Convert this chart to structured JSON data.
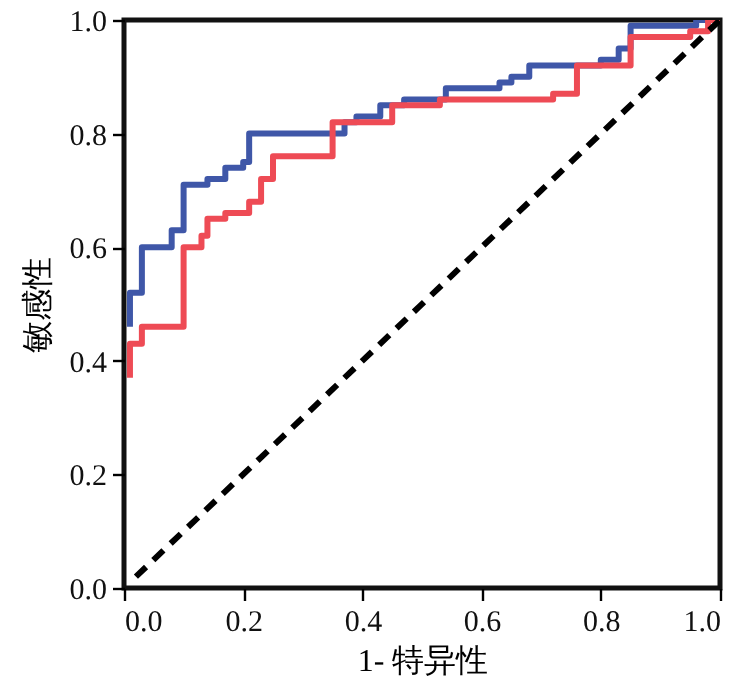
{
  "chart_data": {
    "type": "step",
    "xlabel": "1- 特异性",
    "ylabel": "敏感性",
    "xlim": [
      0,
      1
    ],
    "ylim": [
      0,
      1
    ],
    "xticks": [
      {
        "value": 0,
        "label": "0.0"
      },
      0.2,
      0.4,
      0.6,
      0.8,
      {
        "value": 1,
        "label": "1.0"
      }
    ],
    "yticks": [
      {
        "value": 0,
        "label": "0.0"
      },
      0.2,
      0.4,
      0.6,
      0.8,
      {
        "value": 1,
        "label": "1.0"
      }
    ],
    "series": [
      {
        "color": "#3f57a8",
        "x": [
          0.01,
          0.01,
          0.03,
          0.08,
          0.1,
          0.14,
          0.17,
          0.2,
          0.21,
          0.37,
          0.39,
          0.43,
          0.47,
          0.54,
          0.63,
          0.65,
          0.68,
          0.8,
          0.83,
          0.85,
          0.96,
          1.0
        ],
        "values": [
          0.46,
          0.52,
          0.6,
          0.63,
          0.71,
          0.72,
          0.74,
          0.75,
          0.8,
          0.82,
          0.83,
          0.85,
          0.86,
          0.88,
          0.89,
          0.9,
          0.92,
          0.93,
          0.95,
          0.99,
          1.0,
          1.0
        ]
      },
      {
        "color": "#ee4b55",
        "x": [
          0.01,
          0.01,
          0.03,
          0.1,
          0.13,
          0.14,
          0.17,
          0.21,
          0.23,
          0.25,
          0.35,
          0.45,
          0.53,
          0.72,
          0.76,
          0.85,
          0.95,
          0.98,
          1.0
        ],
        "values": [
          0.37,
          0.43,
          0.46,
          0.6,
          0.62,
          0.65,
          0.66,
          0.68,
          0.72,
          0.76,
          0.82,
          0.85,
          0.86,
          0.87,
          0.92,
          0.97,
          0.98,
          1.0,
          1.0
        ]
      },
      {
        "type": "line",
        "color": "#000000",
        "line_style": "dashed",
        "x": [
          0.02,
          1.0
        ],
        "values": [
          0.02,
          1.0
        ]
      }
    ]
  }
}
